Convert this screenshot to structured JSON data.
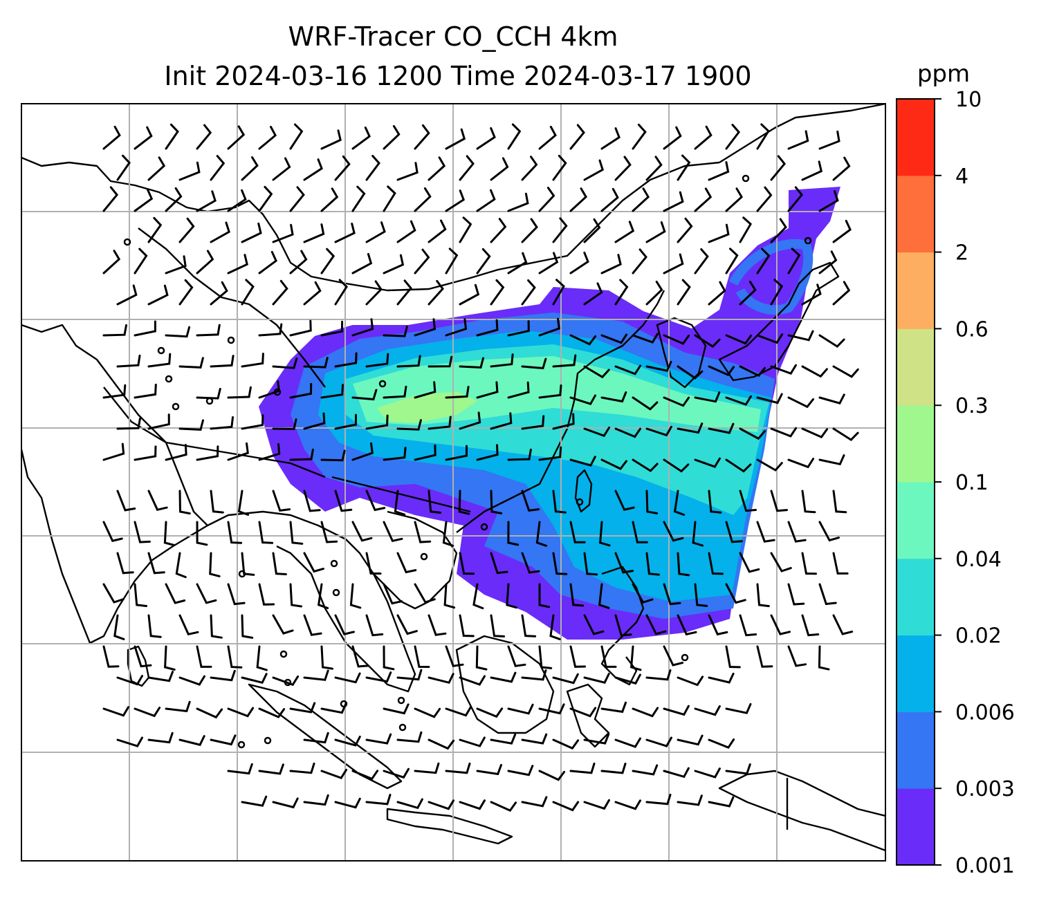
{
  "title_line1": "WRF-Tracer CO_CCH 4km",
  "title_line2": "Init 2024-03-16 1200 Time 2024-03-17 1900",
  "colorbar": {
    "unit": "ppm",
    "levels": [
      "0.001",
      "0.003",
      "0.006",
      "0.02",
      "0.04",
      "0.1",
      "0.3",
      "0.6",
      "2",
      "4",
      "10"
    ],
    "colors": [
      "#6a2cf8",
      "#3476f3",
      "#04b1ea",
      "#30dcd6",
      "#6cf7bf",
      "#9ff78e",
      "#d0e286",
      "#fdae60",
      "#fe6f3b",
      "#ff2a15"
    ]
  },
  "map": {
    "field": "CO_CCH tracer concentration",
    "overlay": "wind barbs",
    "gridlines": true
  }
}
